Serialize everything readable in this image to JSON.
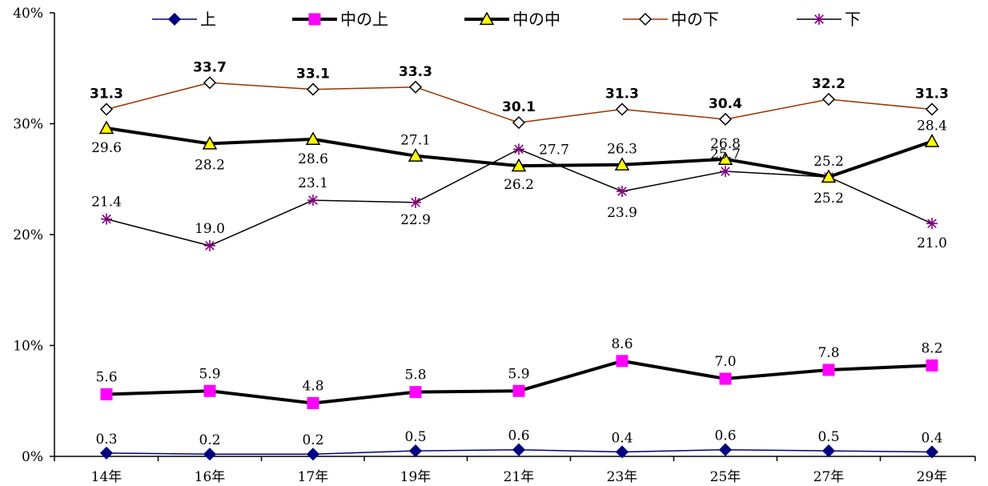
{
  "chart_data": {
    "type": "line",
    "categories": [
      "14年",
      "16年",
      "17年",
      "19年",
      "21年",
      "23年",
      "25年",
      "27年",
      "29年"
    ],
    "ylim": [
      0,
      40
    ],
    "yticks": [
      0,
      10,
      20,
      30,
      40
    ],
    "ytick_labels": [
      "0%",
      "10%",
      "20%",
      "30%",
      "40%"
    ],
    "grid": false,
    "legend_position": "top",
    "series": [
      {
        "name": "上",
        "values": [
          0.3,
          0.2,
          0.2,
          0.5,
          0.6,
          0.4,
          0.6,
          0.5,
          0.4
        ],
        "value_labels": [
          "0.3",
          "0.2",
          "0.2",
          "0.5",
          "0.6",
          "0.4",
          "0.6",
          "0.5",
          "0.4"
        ],
        "color": "#000080",
        "marker": "diamond",
        "marker_fill": "#000080"
      },
      {
        "name": "中の上",
        "values": [
          5.6,
          5.9,
          4.8,
          5.8,
          5.9,
          8.6,
          7.0,
          7.8,
          8.2
        ],
        "value_labels": [
          "5.6",
          "5.9",
          "4.8",
          "5.8",
          "5.9",
          "8.6",
          "7.0",
          "7.8",
          "8.2"
        ],
        "color": "#000000",
        "marker": "square",
        "marker_fill": "#ff00ff"
      },
      {
        "name": "中の中",
        "values": [
          29.6,
          28.2,
          28.6,
          27.1,
          26.2,
          26.3,
          26.8,
          25.2,
          28.4
        ],
        "value_labels": [
          "29.6",
          "28.2",
          "28.6",
          "27.1",
          "26.2",
          "26.3",
          "26.8",
          "25.2",
          "28.4"
        ],
        "color": "#000000",
        "marker": "triangle",
        "marker_fill": "#ffff00"
      },
      {
        "name": "中の下",
        "values": [
          31.3,
          33.7,
          33.1,
          33.3,
          30.1,
          31.3,
          30.4,
          32.2,
          31.3
        ],
        "value_labels": [
          "31.3",
          "33.7",
          "33.1",
          "33.3",
          "30.1",
          "31.3",
          "30.4",
          "32.2",
          "31.3"
        ],
        "color": "#993300",
        "marker": "diamond-open",
        "marker_fill": "#ffffff"
      },
      {
        "name": "下",
        "values": [
          21.4,
          19.0,
          23.1,
          22.9,
          27.7,
          23.9,
          25.7,
          25.2,
          21.0
        ],
        "value_labels": [
          "21.4",
          "19.0",
          "23.1",
          "22.9",
          "27.7",
          "23.9",
          "25.7",
          "25.2",
          "21.0"
        ],
        "color": "#000000",
        "marker": "star",
        "marker_fill": "#800080"
      }
    ]
  }
}
